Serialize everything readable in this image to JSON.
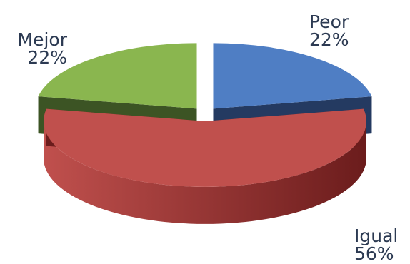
{
  "chart_data": {
    "type": "pie",
    "style": "3d-exploded",
    "title": "",
    "slices": [
      {
        "label": "Peor",
        "value": 22,
        "value_label": "22%",
        "top_color": "#4f7ec4",
        "side_color": "#243a61"
      },
      {
        "label": "Igual",
        "value": 56,
        "value_label": "56%",
        "top_color": "#c0504d",
        "side_color": "#6b1c1c"
      },
      {
        "label": "Mejor",
        "value": 22,
        "value_label": "22%",
        "top_color": "#8ab64f",
        "side_color": "#3c5424"
      }
    ],
    "legend": "none"
  }
}
